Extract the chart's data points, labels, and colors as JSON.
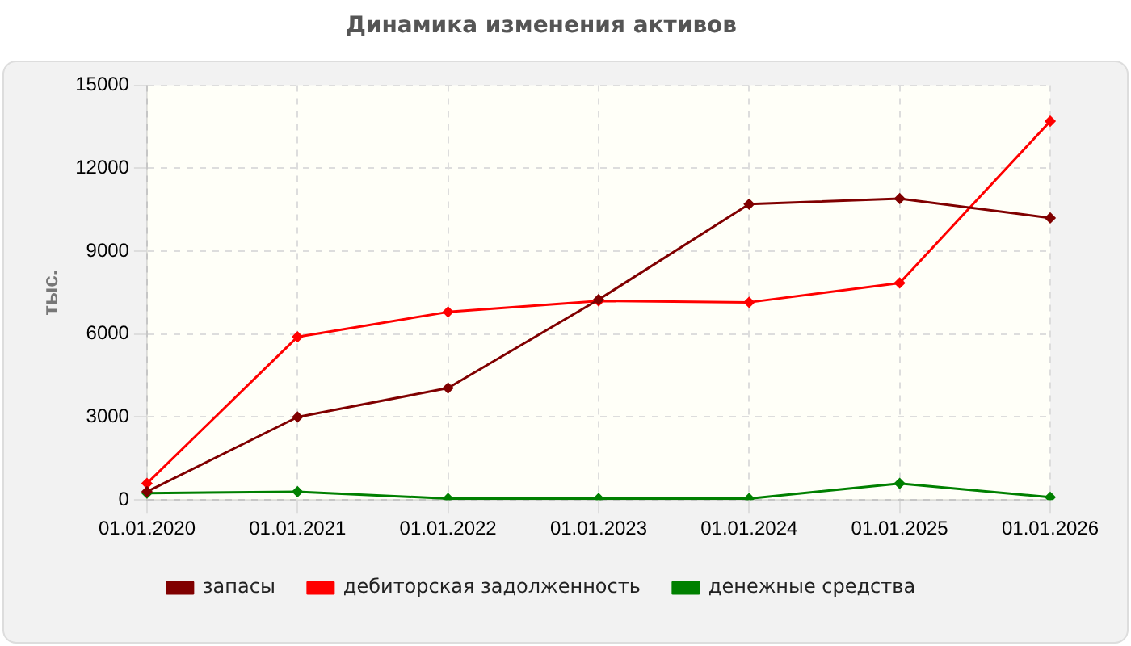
{
  "chart_data": {
    "type": "line",
    "title": "Динамика изменения активов",
    "ylabel": "тыс.",
    "categories": [
      "01.01.2020",
      "01.01.2021",
      "01.01.2022",
      "01.01.2023",
      "01.01.2024",
      "01.01.2025",
      "01.01.2026"
    ],
    "series": [
      {
        "name": "запасы",
        "color": "#800000",
        "values": [
          300,
          3000,
          4050,
          7250,
          10700,
          10900,
          10200
        ]
      },
      {
        "name": "дебиторская задолженность",
        "color": "#ff0000",
        "values": [
          600,
          5900,
          6800,
          7200,
          7150,
          7850,
          13700
        ]
      },
      {
        "name": "денежные средства",
        "color": "#008000",
        "values": [
          250,
          300,
          50,
          50,
          50,
          600,
          100
        ]
      }
    ],
    "ylim": [
      0,
      15000
    ],
    "yticks": [
      0,
      3000,
      6000,
      9000,
      12000,
      15000
    ],
    "grid": true,
    "legend": "bottom",
    "marker": "diamond",
    "line_style": "solid"
  }
}
